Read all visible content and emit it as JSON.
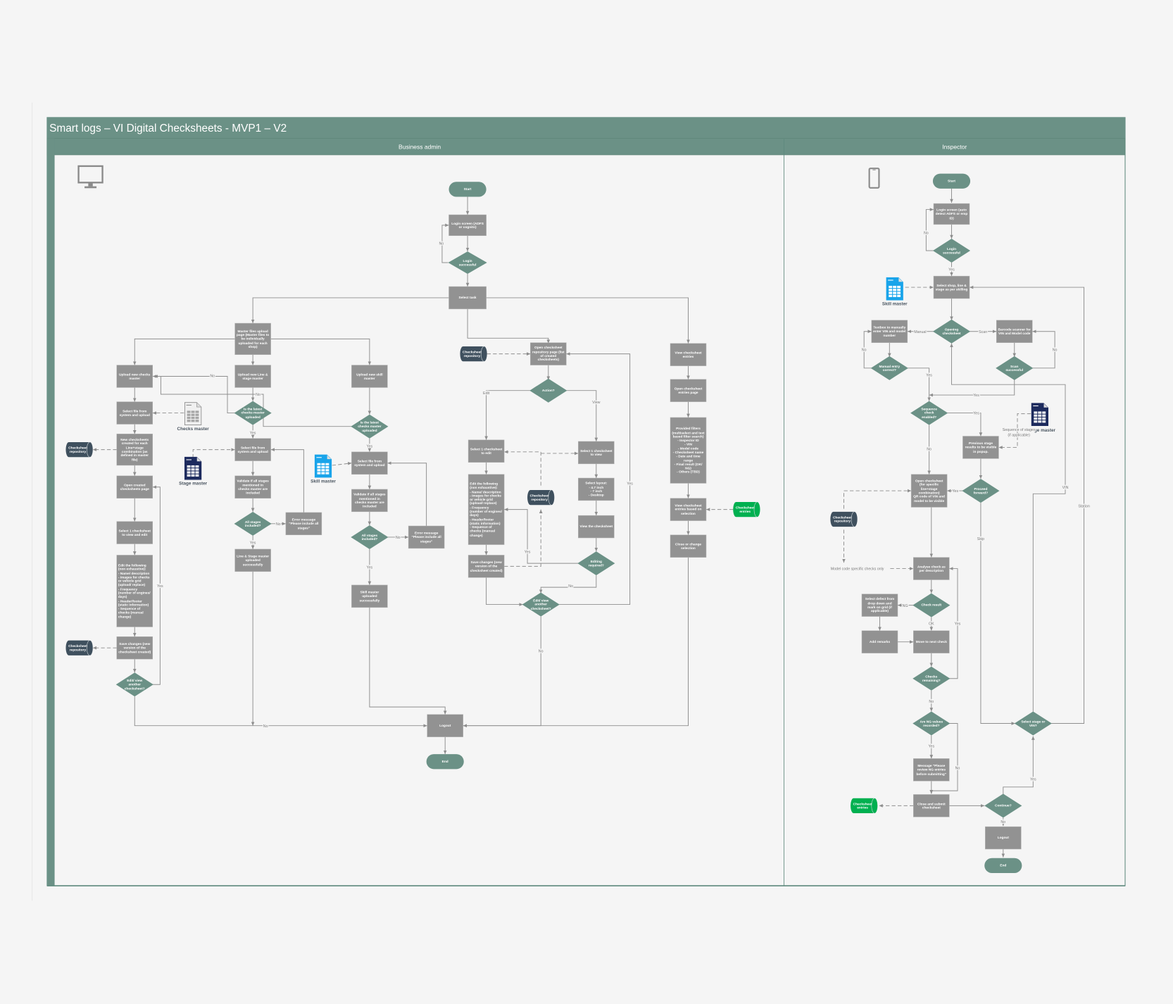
{
  "title": "Smart logs – VI Digital Checksheets - MVP1 – V2",
  "lanes": {
    "admin": "Business admin",
    "inspector": "Inspector"
  },
  "colors": {
    "header": "#6b9186",
    "process": "#929292",
    "decision": "#6b9186",
    "database": "#3f505e",
    "entries_db": "#00b050",
    "connector": "#8e8e8e"
  },
  "icons": {
    "admin_device": "monitor-icon",
    "inspector_device": "smartphone-icon",
    "spreadsheet": "spreadsheet-icon"
  },
  "nodes": {
    "a_start": "Start",
    "a_login": "Login screen (ADFS or cognito)",
    "a_login_ok": "Login successful",
    "a_task": "Select task",
    "a_master": "Master files upload page (Master files to be individually uploaded for each shop)",
    "a_up_checks": "Upload new checks master",
    "a_up_line": "Upload new Line & stage master",
    "a_up_skill": "Upload new skill master",
    "a_sel1": "Select file from system and upload",
    "a_checks_icon": "Checks master",
    "a_latest1": "Is the latest checks master uploaded",
    "a_new": "New checksheets created for each Line+stage combination (as defined in master file)",
    "a_db1": "Checksheet repository",
    "a_latest2": "Is the latest checks master uploaded",
    "a_sel2": "Select file from system and upload",
    "a_sel3": "Select file from system and upload",
    "a_stage_icon": "Stage master",
    "a_skill_icon": "Skill master",
    "a_open_created": "Open created checksheets page",
    "a_validate1": "Validate if all stages mentioned in checks master are included",
    "a_validate2": "Validate if all stages mentioned in checks master are included",
    "a_all1": "All stages included?",
    "a_all2": "All stages included?",
    "a_err1": "Error message \"Please include all stages\"",
    "a_err2": "Error message \"Please include all stages\"",
    "a_select_edit": "Select 1 checksheet to view and edit",
    "a_line_ok": "Line & Stage master uploaded successfully",
    "a_edit": "Edit the following (non exhaustive):\n- Name/ description\n- Images for checks or vehicle grid (upload/ replace)\n- Frequency (number of engines/ days)\n- Header/footer (static information)\n- Sequence of checks (manual change)",
    "a_skill_ok": "Skill master uploaded successfully",
    "a_save": "Save changes (new version of the checksheet created)",
    "a_db2": "Checksheet repository",
    "a_another": "Edit/ view another checksheet?",
    "a_logout": "Logout",
    "a_end": "End",
    "m_db": "Checksheet repository",
    "m_open": "Open checksheet repository page (list of created checksheets)",
    "m_action": "Action?",
    "m_sel_edit": "Select 1 checksheet to edit",
    "m_sel_view": "Select 1 checksheet to view",
    "m_edit": "Edit the following (non exhaustive):\n- Name/ description\n- Images for checks or vehicle grid (upload/ replace)\n- Frequency (number of engines/ days)\n- Header/footer (static information)\n- Sequence of checks (manual change)",
    "m_db2": "Checksheet repository",
    "m_layout": "Select layout:\n- 4.7 inch\n- 7 inch\n- Desktop",
    "m_view": "View the checksheet",
    "m_save": "Save changes (new version of the checksheet created)",
    "m_editing": "Editing required?",
    "m_another": "Edit/ view another checksheet?",
    "e_view": "View checksheet entries",
    "e_open": "Open checksheet entries page",
    "e_filters": "Provided filters (multiselect and text based filter search)\n- Inspector ID\n- VIN\n- Model code\n- Checksheet name\n- Date and time range\n- Final result (OK/ NG)\n- Others (TBD)",
    "e_view_sel": "View checksheet entries based on selection",
    "e_db": "Checksheet entries",
    "e_close": "Close or change selection",
    "i_start": "Start",
    "i_login": "Login screen (auto detect ADFS or emp ID)",
    "i_login_ok": "Login successful",
    "i_skill_icon": "Skill master",
    "i_select_shop": "Select shop, line & stage as per skilling",
    "i_textbox": "Textbox to manually enter VIN and model number",
    "i_opening": "Opening checksheet",
    "i_barcode": "Barcode scanner for VIN and Model code",
    "i_manual_ok": "Manual entry correct?",
    "i_scan_ok": "Scan successful",
    "i_seq": "Sequence check enabled?",
    "i_stage_icon": "Stage master",
    "i_previous": "Previous stage results to be visible in popup.",
    "i_open": "Open checksheet (for specific line+stage combination)\nQR code of VIN and model to be visible",
    "i_proceed": "Proceed forward?",
    "i_db": "Checksheet repository",
    "i_analyse": "Analyse check as per description",
    "i_defect": "Select defect from drop down and mark on grid (if applicable)",
    "i_check_result": "Check result",
    "i_remarks": "Add remarks",
    "i_next": "Move to next check",
    "i_remaining": "Checks remaining?",
    "i_ng": "Are NG values recorded?",
    "i_stage_vin": "Select stage or VIN?",
    "i_message": "Message \"Please review NG entries before submitting\"",
    "i_close": "Close and submit checksheet",
    "i_entries": "Checksheet entries",
    "i_continue": "Continue?",
    "i_logout": "Logout",
    "i_end": "End"
  },
  "annotations": [
    "Model code specific checks only",
    "Sequence of stages",
    "(if applicable)"
  ],
  "edge_labels": [
    "No",
    "No",
    "No",
    "Yes",
    "No",
    "Yes",
    "Yes",
    "No",
    "Yes",
    "Yes",
    "No",
    "Edit",
    "View",
    "Yes",
    "No",
    "Yes",
    "No",
    "No",
    "Yes",
    "Manual",
    "Scan",
    "No",
    "Yes",
    "No",
    "Yes",
    "Yes",
    "No",
    "Yes",
    "Skip",
    "VIN",
    "Station",
    "NG",
    "OK",
    "Yes",
    "No",
    "Yes",
    "No",
    "Yes",
    "No"
  ]
}
